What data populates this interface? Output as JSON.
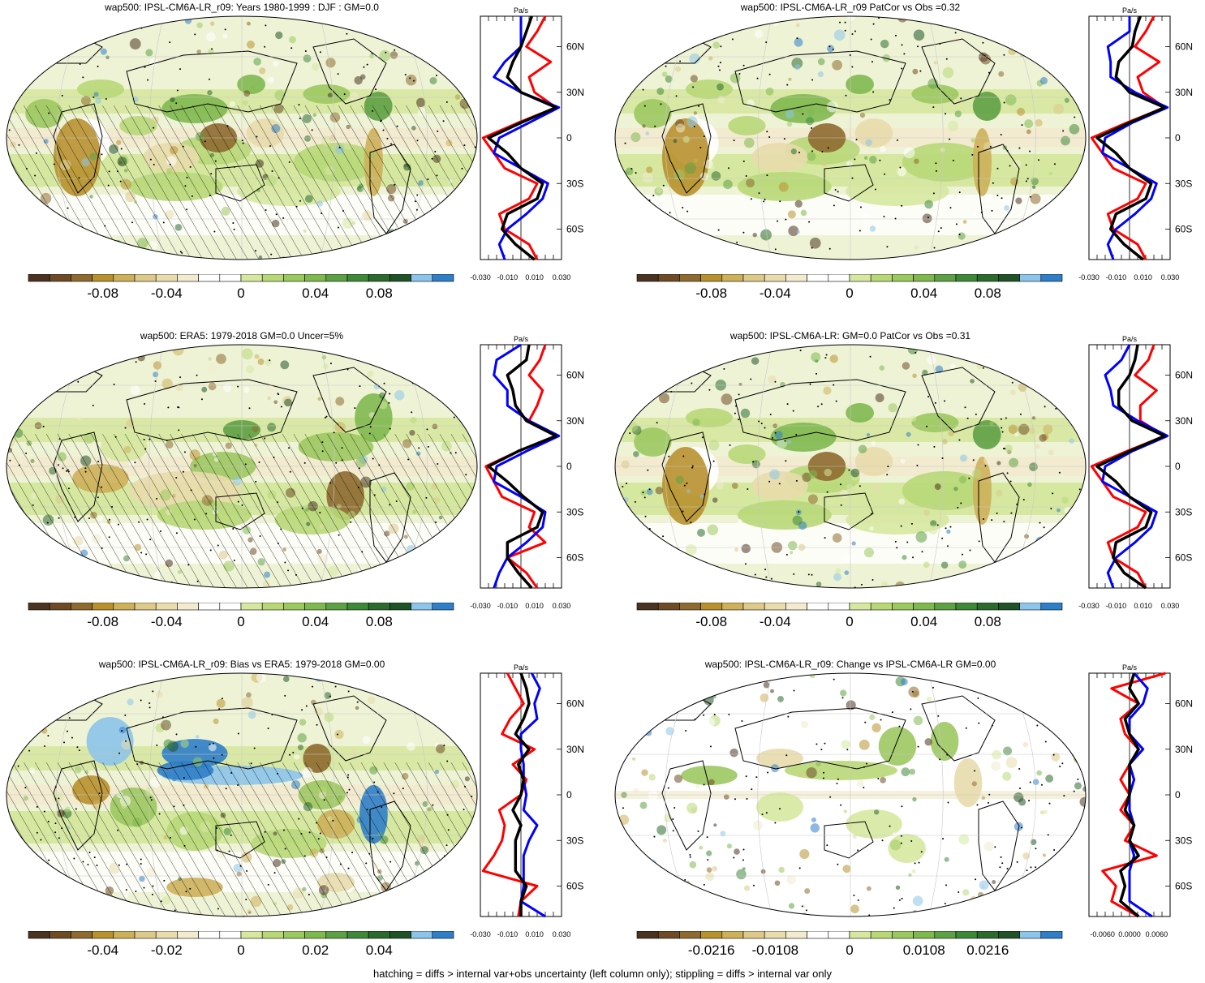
{
  "colors": {
    "bar": [
      "#4a3320",
      "#6e4a25",
      "#8e6a30",
      "#b8912f",
      "#cdb05a",
      "#ddc98a",
      "#e8dcac",
      "#f2ebcf",
      "#ffffff",
      "#ffffff",
      "#d6e8a0",
      "#b8d878",
      "#9cc860",
      "#80b850",
      "#5ea044",
      "#3f8838",
      "#2c6a2e",
      "#205228",
      "#8cc4ea",
      "#2f7ec8"
    ],
    "obs": "#ff0000",
    "model": "#0000ff",
    "mean": "#000000"
  },
  "footer": "hatching = diffs > internal var+obs uncertainty (left column only); stippling = diffs > internal var only",
  "panels": [
    {
      "title": "wap500: IPSL-CM6A-LR_r09: Years 1980-1999 : DJF : GM=0.0",
      "pattern": "model",
      "hatch": true,
      "colorbar": {
        "ticks": [
          "-0.08",
          "-0.04",
          "0",
          "0.04",
          "0.08"
        ]
      },
      "profile": {
        "unit": "Pa/s",
        "lat_labels": [
          "60N",
          "30N",
          "0",
          "30S",
          "60S"
        ],
        "x_ticks": [
          "-0.030",
          "-0.010",
          "0.010",
          "0.030"
        ],
        "xlim": [
          -0.03,
          0.03
        ]
      }
    },
    {
      "title": "wap500: IPSL-CM6A-LR_r09 PatCor vs Obs =0.32",
      "pattern": "model",
      "hatch": false,
      "colorbar": {
        "ticks": [
          "-0.08",
          "-0.04",
          "0",
          "0.04",
          "0.08"
        ]
      },
      "profile": {
        "unit": "Pa/s",
        "lat_labels": [
          "60N",
          "30N",
          "0",
          "30S",
          "60S"
        ],
        "x_ticks": [
          "-0.030",
          "-0.010",
          "0.010",
          "0.030"
        ],
        "xlim": [
          -0.03,
          0.03
        ]
      }
    },
    {
      "title": "wap500: ERA5: 1979-2018 GM=0.0 Uncer=5%",
      "pattern": "obs",
      "hatch": true,
      "colorbar": {
        "ticks": [
          "-0.08",
          "-0.04",
          "0",
          "0.04",
          "0.08"
        ]
      },
      "profile": {
        "unit": "Pa/s",
        "lat_labels": [
          "60N",
          "30N",
          "0",
          "30S",
          "60S"
        ],
        "x_ticks": [
          "-0.030",
          "-0.010",
          "0.010",
          "0.030"
        ],
        "xlim": [
          -0.03,
          0.03
        ]
      }
    },
    {
      "title": "wap500: IPSL-CM6A-LR: GM=0.0 PatCor vs Obs =0.31",
      "pattern": "model",
      "hatch": false,
      "colorbar": {
        "ticks": [
          "-0.08",
          "-0.04",
          "0",
          "0.04",
          "0.08"
        ]
      },
      "profile": {
        "unit": "Pa/s",
        "lat_labels": [
          "60N",
          "30N",
          "0",
          "30S",
          "60S"
        ],
        "x_ticks": [
          "-0.030",
          "-0.010",
          "0.010",
          "0.030"
        ],
        "xlim": [
          -0.03,
          0.03
        ]
      }
    },
    {
      "title": "wap500: IPSL-CM6A-LR_r09: Bias vs ERA5: 1979-2018 GM=0.00",
      "pattern": "bias",
      "hatch": true,
      "colorbar": {
        "ticks": [
          "-0.04",
          "-0.02",
          "0",
          "0.02",
          "0.04"
        ]
      },
      "profile": {
        "unit": "Pa/s",
        "lat_labels": [
          "60N",
          "30N",
          "0",
          "30S",
          "60S"
        ],
        "x_ticks": [
          "-0.030",
          "-0.010",
          "0.010",
          "0.030"
        ],
        "xlim": [
          -0.03,
          0.03
        ]
      }
    },
    {
      "title": "wap500: IPSL-CM6A-LR_r09: Change vs IPSL-CM6A-LR GM=0.00",
      "pattern": "change",
      "hatch": false,
      "colorbar": {
        "ticks": [
          "-0.0216",
          "-0.0108",
          "0",
          "0.0108",
          "0.0216"
        ]
      },
      "profile": {
        "unit": "Pa/s",
        "lat_labels": [
          "60N",
          "30N",
          "0",
          "30S",
          "60S"
        ],
        "x_ticks": [
          "-0.0060",
          "0.0000",
          "0.0060"
        ],
        "xlim": [
          -0.009,
          0.009
        ]
      }
    }
  ],
  "chart_data": [
    {
      "type": "line",
      "title": "wap500: IPSL-CM6A-LR_r09: Years 1980-1999 : DJF : GM=0.0",
      "xlabel": "Pa/s",
      "x_ticks": [
        "-0.030",
        "-0.010",
        "0.010",
        "0.030"
      ],
      "y_ticks": [
        "60N",
        "30N",
        "0",
        "30S",
        "60S"
      ],
      "xlim": [
        -0.03,
        0.03
      ],
      "ylim": [
        -80,
        80
      ],
      "lat": [
        80,
        70,
        60,
        50,
        40,
        30,
        20,
        10,
        0,
        -10,
        -20,
        -30,
        -40,
        -50,
        -60,
        -70,
        -80
      ],
      "series": [
        {
          "values": [
            0.018,
            0.012,
            0.004,
            0.022,
            0.006,
            0.01,
            0.026,
            -0.002,
            -0.028,
            -0.02,
            -0.012,
            0.012,
            0.006,
            -0.016,
            -0.012,
            0.006,
            0.012
          ]
        },
        {
          "values": [
            0.0,
            0.0,
            0.0,
            -0.012,
            -0.02,
            0.0,
            0.028,
            0.006,
            -0.016,
            -0.02,
            0.0,
            0.02,
            0.016,
            0.004,
            -0.01,
            -0.016,
            -0.012
          ]
        },
        {
          "values": [
            0.008,
            0.004,
            0.0,
            -0.006,
            -0.01,
            0.0,
            0.026,
            0.0,
            -0.024,
            -0.01,
            0.0,
            0.016,
            0.012,
            -0.01,
            -0.014,
            -0.004,
            0.01
          ]
        }
      ]
    },
    {
      "type": "line",
      "title": "wap500: IPSL-CM6A-LR_r09 PatCor vs Obs =0.32",
      "xlabel": "Pa/s",
      "x_ticks": [
        "-0.030",
        "-0.010",
        "0.010",
        "0.030"
      ],
      "y_ticks": [
        "60N",
        "30N",
        "0",
        "30S",
        "60S"
      ],
      "xlim": [
        -0.03,
        0.03
      ],
      "ylim": [
        -80,
        80
      ],
      "lat": [
        80,
        70,
        60,
        50,
        40,
        30,
        20,
        10,
        0,
        -10,
        -20,
        -30,
        -40,
        -50,
        -60,
        -70,
        -80
      ],
      "series": [
        {
          "values": [
            0.018,
            0.012,
            0.004,
            0.022,
            0.006,
            0.01,
            0.026,
            -0.002,
            -0.028,
            -0.02,
            -0.012,
            0.012,
            0.006,
            -0.016,
            -0.012,
            0.006,
            0.012
          ]
        },
        {
          "values": [
            0.0,
            0.0,
            -0.016,
            -0.014,
            -0.014,
            0.004,
            0.028,
            0.002,
            -0.018,
            -0.02,
            0.0,
            0.02,
            0.016,
            0.004,
            -0.01,
            -0.016,
            -0.012
          ]
        },
        {
          "values": [
            0.008,
            0.004,
            0.002,
            -0.008,
            -0.01,
            0.0,
            0.026,
            0.0,
            -0.024,
            -0.01,
            0.0,
            0.016,
            0.012,
            -0.01,
            -0.014,
            -0.004,
            0.01
          ]
        }
      ]
    },
    {
      "type": "line",
      "title": "wap500: ERA5: 1979-2018 GM=0.0 Uncer=5%",
      "xlabel": "Pa/s",
      "x_ticks": [
        "-0.030",
        "-0.010",
        "0.010",
        "0.030"
      ],
      "y_ticks": [
        "60N",
        "30N",
        "0",
        "30S",
        "60S"
      ],
      "xlim": [
        -0.03,
        0.03
      ],
      "ylim": [
        -80,
        80
      ],
      "lat": [
        80,
        70,
        60,
        50,
        40,
        30,
        20,
        10,
        0,
        -10,
        -20,
        -30,
        -40,
        -50,
        -60,
        -70,
        -80
      ],
      "series": [
        {
          "values": [
            0.018,
            0.014,
            0.006,
            0.016,
            0.012,
            0.006,
            0.026,
            -0.002,
            -0.026,
            -0.02,
            -0.014,
            0.01,
            0.006,
            0.018,
            -0.01,
            0.004,
            0.012
          ]
        },
        {
          "values": [
            0.0,
            -0.018,
            -0.02,
            -0.01,
            -0.01,
            0.006,
            0.028,
            0.004,
            -0.018,
            -0.02,
            0.0,
            0.018,
            0.016,
            0.004,
            -0.01,
            -0.016,
            -0.02
          ]
        },
        {
          "values": [
            0.006,
            0.004,
            -0.01,
            -0.006,
            -0.004,
            0.004,
            0.026,
            -0.002,
            -0.024,
            -0.01,
            0.002,
            0.016,
            0.012,
            -0.01,
            -0.01,
            -0.002,
            0.008
          ]
        }
      ]
    },
    {
      "type": "line",
      "title": "wap500: IPSL-CM6A-LR: GM=0.0 PatCor vs Obs =0.31",
      "xlabel": "Pa/s",
      "x_ticks": [
        "-0.030",
        "-0.010",
        "0.010",
        "0.030"
      ],
      "y_ticks": [
        "60N",
        "30N",
        "0",
        "30S",
        "60S"
      ],
      "xlim": [
        -0.03,
        0.03
      ],
      "ylim": [
        -80,
        80
      ],
      "lat": [
        80,
        70,
        60,
        50,
        40,
        30,
        20,
        10,
        0,
        -10,
        -20,
        -30,
        -40,
        -50,
        -60,
        -70,
        -80
      ],
      "series": [
        {
          "values": [
            0.018,
            0.014,
            0.004,
            0.02,
            0.008,
            0.008,
            0.026,
            -0.002,
            -0.028,
            -0.02,
            -0.012,
            0.012,
            0.006,
            -0.016,
            -0.012,
            0.006,
            0.012
          ]
        },
        {
          "values": [
            0.0,
            -0.006,
            -0.018,
            -0.014,
            -0.012,
            0.006,
            0.028,
            0.002,
            -0.018,
            -0.02,
            0.0,
            0.02,
            0.016,
            0.004,
            -0.01,
            -0.016,
            -0.012
          ]
        },
        {
          "values": [
            0.006,
            0.004,
            0.0,
            -0.008,
            -0.008,
            0.002,
            0.026,
            0.0,
            -0.024,
            -0.01,
            0.0,
            0.016,
            0.012,
            -0.01,
            -0.012,
            -0.004,
            0.012
          ]
        }
      ]
    },
    {
      "type": "line",
      "title": "wap500: IPSL-CM6A-LR_r09: Bias vs ERA5: 1979-2018 GM=0.00",
      "xlabel": "Pa/s",
      "x_ticks": [
        "-0.030",
        "-0.010",
        "0.010",
        "0.030"
      ],
      "y_ticks": [
        "60N",
        "30N",
        "0",
        "30S",
        "60S"
      ],
      "xlim": [
        -0.03,
        0.03
      ],
      "ylim": [
        -80,
        80
      ],
      "lat": [
        80,
        70,
        60,
        50,
        40,
        30,
        20,
        10,
        0,
        -10,
        -20,
        -30,
        -40,
        -50,
        -60,
        -70,
        -80
      ],
      "series": [
        {
          "values": [
            -0.01,
            -0.004,
            0.002,
            -0.008,
            -0.014,
            0.01,
            -0.006,
            0.004,
            0.0,
            -0.016,
            -0.012,
            -0.014,
            -0.02,
            -0.028,
            0.012,
            0.0,
            -0.002
          ]
        },
        {
          "values": [
            0.008,
            0.014,
            0.01,
            0.012,
            0.0,
            0.0,
            0.002,
            0.002,
            0.004,
            0.002,
            0.012,
            0.006,
            0.002,
            0.002,
            0.002,
            0.0,
            0.018
          ]
        },
        {
          "values": [
            0.0,
            0.004,
            0.006,
            0.002,
            -0.004,
            0.006,
            -0.002,
            0.002,
            0.0,
            -0.006,
            0.0,
            -0.004,
            -0.004,
            -0.004,
            0.004,
            0.0,
            0.0
          ]
        }
      ]
    },
    {
      "type": "line",
      "title": "wap500: IPSL-CM6A-LR_r09: Change vs IPSL-CM6A-LR GM=0.00",
      "xlabel": "Pa/s",
      "x_ticks": [
        "-0.0060",
        "0.0000",
        "0.0060"
      ],
      "y_ticks": [
        "60N",
        "30N",
        "0",
        "30S",
        "60S"
      ],
      "xlim": [
        -0.009,
        0.009
      ],
      "ylim": [
        -80,
        80
      ],
      "lat": [
        80,
        70,
        60,
        50,
        40,
        30,
        20,
        10,
        0,
        -10,
        -20,
        -30,
        -40,
        -50,
        -60,
        -70,
        -80
      ],
      "series": [
        {
          "values": [
            0.008,
            -0.004,
            0.002,
            -0.002,
            -0.001,
            0.002,
            0.0,
            -0.002,
            0.0,
            -0.002,
            0.001,
            -0.001,
            0.006,
            -0.006,
            -0.003,
            -0.004,
            0.002
          ]
        },
        {
          "values": [
            0.001,
            0.004,
            0.003,
            0.0,
            0.0,
            0.003,
            0.0,
            0.001,
            0.0,
            0.0,
            0.001,
            0.0,
            0.001,
            0.0,
            0.0,
            0.0,
            0.005
          ]
        },
        {
          "values": [
            0.001,
            0.0,
            0.002,
            -0.001,
            0.0,
            0.002,
            0.0,
            0.0,
            0.0,
            -0.001,
            0.001,
            0.0,
            0.002,
            -0.002,
            -0.001,
            -0.002,
            0.002
          ]
        }
      ]
    }
  ]
}
